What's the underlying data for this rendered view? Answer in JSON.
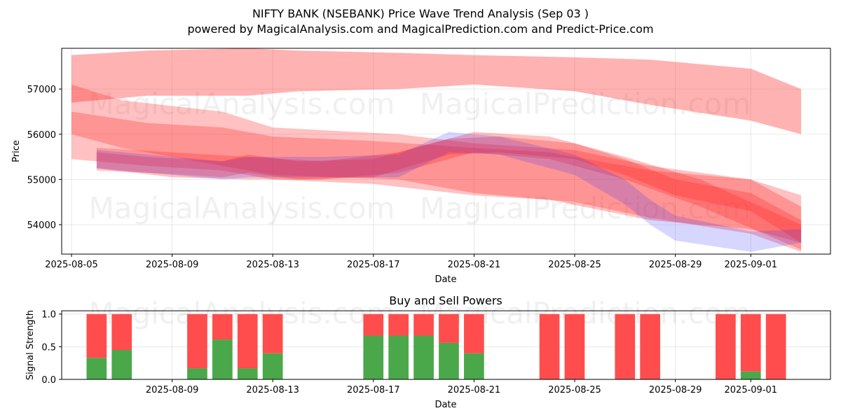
{
  "chart_data": [
    {
      "type": "area",
      "title": "NIFTY BANK (NSEBANK) Price Wave Trend Analysis (Sep 03 )",
      "subtitle": "powered by MagicalAnalysis.com and MagicalPrediction.com and Predict-Price.com",
      "xlabel": "Date",
      "ylabel": "Price",
      "xlim": [
        "2025-08-05",
        "2025-09-04"
      ],
      "ylim": [
        53350,
        57900
      ],
      "x_ticks": [
        "2025-08-05",
        "2025-08-09",
        "2025-08-13",
        "2025-08-17",
        "2025-08-21",
        "2025-08-25",
        "2025-08-29",
        "2025-09-01"
      ],
      "y_ticks": [
        54000,
        55000,
        56000,
        57000
      ],
      "grid": true,
      "watermarks": [
        "MagicalAnalysis.com",
        "MagicalPrediction.com"
      ],
      "colors": {
        "red_band": "#ff2222",
        "blue_band": "#3333ff"
      },
      "series": [
        {
          "color": "#ff2222",
          "x": [
            "2025-08-05",
            "2025-08-08",
            "2025-08-12",
            "2025-08-14",
            "2025-08-18",
            "2025-08-21",
            "2025-08-25",
            "2025-08-28",
            "2025-09-01",
            "2025-09-03"
          ],
          "upper": [
            57750,
            57850,
            57900,
            57850,
            57800,
            57750,
            57700,
            57650,
            57450,
            57000
          ],
          "lower": [
            56700,
            56850,
            56850,
            56950,
            57000,
            57100,
            56950,
            56650,
            56300,
            56000
          ]
        },
        {
          "color": "#ff2222",
          "x": [
            "2025-08-05",
            "2025-08-08",
            "2025-08-11",
            "2025-08-13",
            "2025-08-17",
            "2025-08-21",
            "2025-08-24",
            "2025-08-28",
            "2025-09-01",
            "2025-09-03"
          ],
          "upper": [
            56500,
            56250,
            56150,
            55950,
            55850,
            55700,
            55600,
            55200,
            55000,
            54650
          ],
          "lower": [
            55450,
            55300,
            55200,
            55000,
            54900,
            54650,
            54550,
            54100,
            53900,
            53600
          ]
        },
        {
          "color": "#ff2222",
          "x": [
            "2025-08-05",
            "2025-08-07",
            "2025-08-11",
            "2025-08-13",
            "2025-08-18",
            "2025-08-21",
            "2025-08-25",
            "2025-08-28",
            "2025-09-01",
            "2025-09-03"
          ],
          "upper": [
            57100,
            56750,
            56500,
            56150,
            56000,
            55800,
            55650,
            55300,
            55000,
            54400
          ],
          "lower": [
            56000,
            55700,
            55300,
            55100,
            55000,
            54700,
            54500,
            54150,
            53800,
            53400
          ]
        },
        {
          "color": "#ff2222",
          "x": [
            "2025-08-06",
            "2025-08-08",
            "2025-08-11",
            "2025-08-12",
            "2025-08-14",
            "2025-08-17",
            "2025-08-20",
            "2025-08-22",
            "2025-08-25",
            "2025-08-27",
            "2025-08-29",
            "2025-09-01",
            "2025-09-03"
          ],
          "upper": [
            55600,
            55500,
            55400,
            55550,
            55400,
            55450,
            55900,
            55950,
            55800,
            55450,
            55000,
            54700,
            54100
          ],
          "lower": [
            55200,
            55150,
            55050,
            55150,
            55000,
            55050,
            55550,
            55600,
            55450,
            55100,
            54650,
            54300,
            53600
          ]
        },
        {
          "color": "#ff2222",
          "x": [
            "2025-08-06",
            "2025-08-09",
            "2025-08-12",
            "2025-08-15",
            "2025-08-18",
            "2025-08-21",
            "2025-08-24",
            "2025-08-27",
            "2025-08-30",
            "2025-09-03"
          ],
          "upper": [
            55700,
            55600,
            55500,
            55400,
            55600,
            56050,
            55950,
            55500,
            55000,
            54000
          ],
          "lower": [
            55250,
            55050,
            55000,
            55000,
            55150,
            55600,
            55450,
            55000,
            54400,
            53450
          ]
        },
        {
          "color": "#3333ff",
          "x": [
            "2025-08-06",
            "2025-08-08",
            "2025-08-11",
            "2025-08-12",
            "2025-08-15",
            "2025-08-18",
            "2025-08-20",
            "2025-08-22",
            "2025-08-25",
            "2025-08-27",
            "2025-08-28",
            "2025-08-29",
            "2025-09-01",
            "2025-09-03"
          ],
          "upper": [
            55650,
            55550,
            55400,
            55500,
            55500,
            55550,
            56050,
            55950,
            55550,
            55000,
            54550,
            54200,
            53850,
            53900
          ],
          "lower": [
            55250,
            55150,
            55000,
            55050,
            55050,
            55050,
            55600,
            55550,
            55100,
            54450,
            54000,
            53650,
            53400,
            53600
          ]
        }
      ]
    },
    {
      "type": "bar",
      "title": "Buy and Sell Powers",
      "xlabel": "Date",
      "ylabel": "Signal Strength",
      "xlim": [
        "2025-08-05",
        "2025-09-04"
      ],
      "ylim": [
        0,
        1.05
      ],
      "x_ticks": [
        "2025-08-09",
        "2025-08-13",
        "2025-08-17",
        "2025-08-21",
        "2025-08-25",
        "2025-08-29",
        "2025-09-01"
      ],
      "y_ticks": [
        0.0,
        0.5,
        1.0
      ],
      "grid": true,
      "watermarks": [
        "MagicalAnalysis.com",
        "MagicalPrediction.com"
      ],
      "colors": {
        "buy": "#4aa84a",
        "sell": "#ff4d4d"
      },
      "x": [
        "2025-08-06",
        "2025-08-07",
        "2025-08-10",
        "2025-08-11",
        "2025-08-12",
        "2025-08-13",
        "2025-08-17",
        "2025-08-18",
        "2025-08-19",
        "2025-08-20",
        "2025-08-21",
        "2025-08-24",
        "2025-08-25",
        "2025-08-27",
        "2025-08-28",
        "2025-08-31",
        "2025-09-01",
        "2025-09-02"
      ],
      "series": [
        {
          "values": [
            0.33,
            0.45,
            0.17,
            0.61,
            0.17,
            0.4,
            0.67,
            0.67,
            0.67,
            0.56,
            0.4,
            0.0,
            0.0,
            0.0,
            0.0,
            0.0,
            0.12,
            0.0
          ]
        },
        {
          "values": [
            0.67,
            0.55,
            0.83,
            0.39,
            0.83,
            0.6,
            0.33,
            0.33,
            0.33,
            0.44,
            0.6,
            1.0,
            1.0,
            1.0,
            1.0,
            1.0,
            0.88,
            1.0
          ]
        }
      ]
    }
  ]
}
